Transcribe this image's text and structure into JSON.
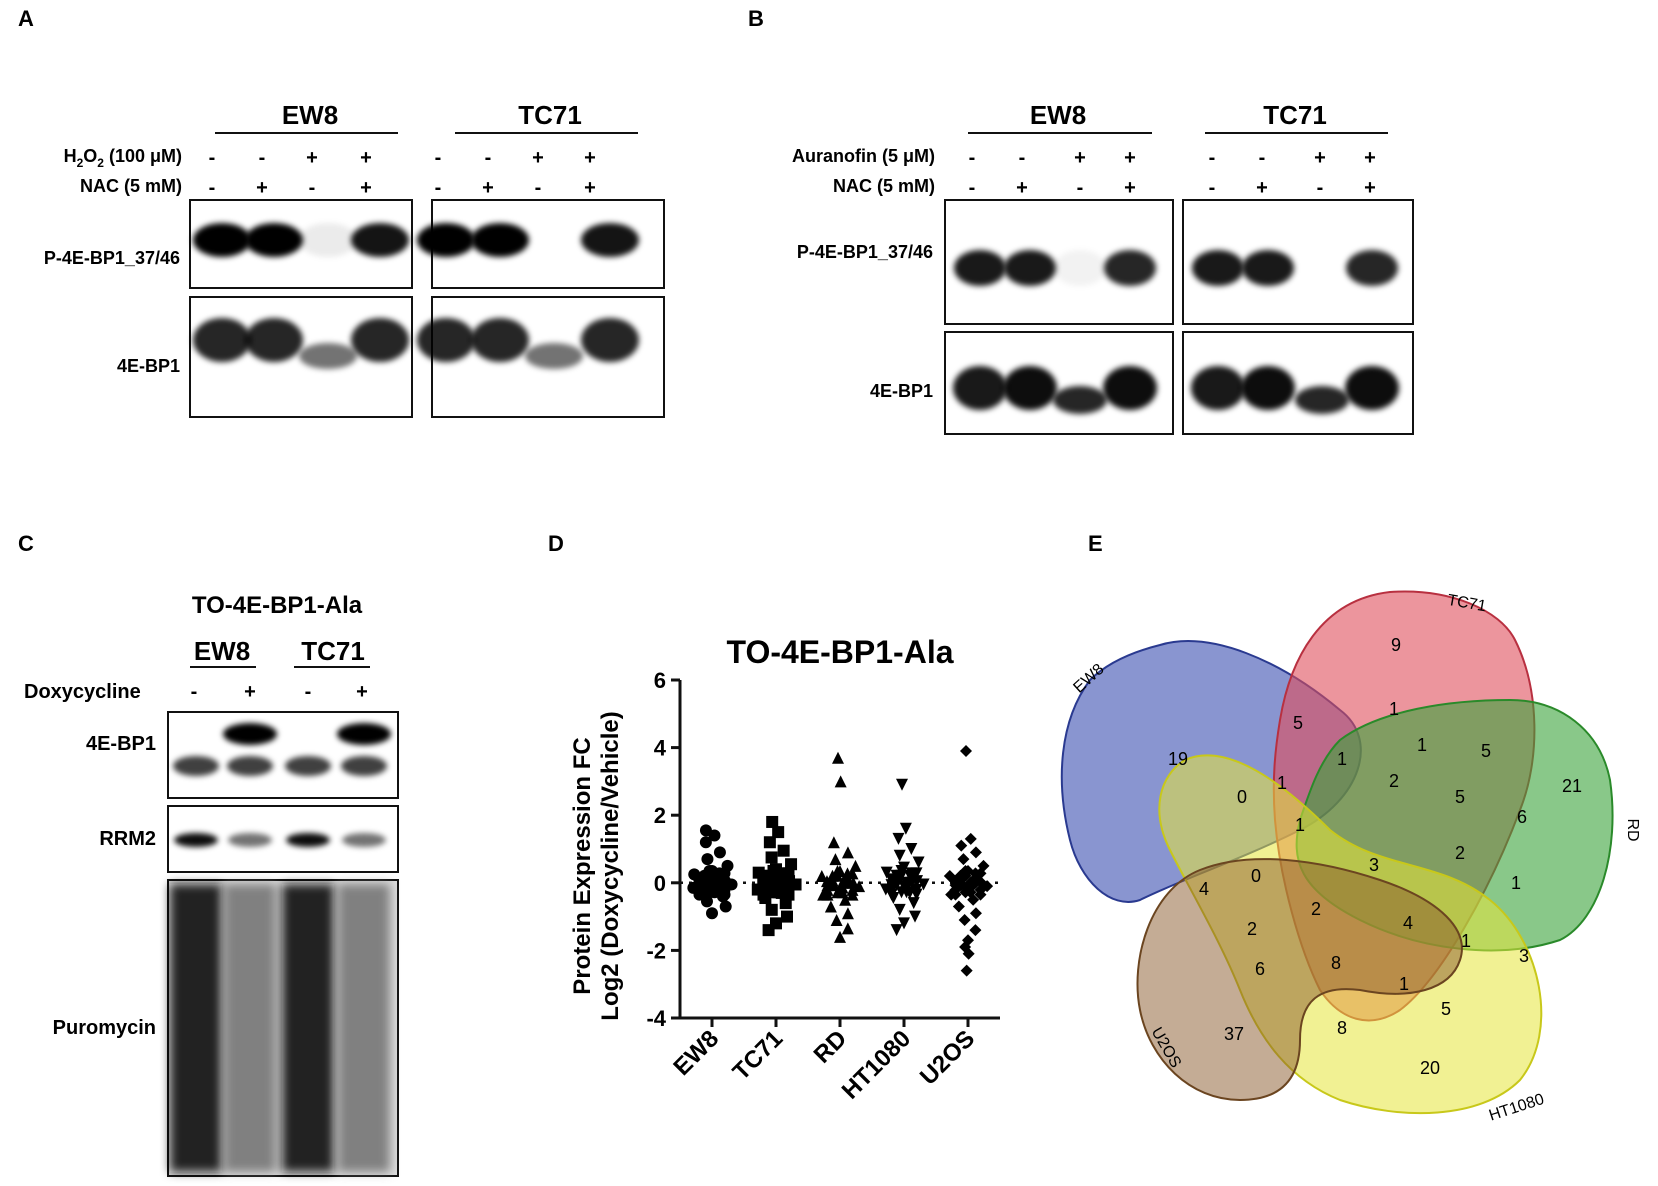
{
  "panels": {
    "A": {
      "letter": "A",
      "groups": [
        "EW8",
        "TC71"
      ],
      "treatments": [
        {
          "label": "H2O2 (100 μM)",
          "signs": [
            "-",
            "-",
            "+",
            "+"
          ]
        },
        {
          "label": "NAC (5 mM)",
          "signs": [
            "-",
            "+",
            "-",
            "+"
          ]
        }
      ],
      "blots": [
        "P-4E-BP1_37/46",
        "4E-BP1"
      ],
      "band_intensity": {
        "P-4E-BP1_37/46": [
          1.0,
          1.0,
          0.08,
          0.92
        ],
        "4E-BP1": [
          0.85,
          0.85,
          0.55,
          0.85
        ]
      }
    },
    "B": {
      "letter": "B",
      "groups": [
        "EW8",
        "TC71"
      ],
      "treatments": [
        {
          "label": "Auranofin (5 μM)",
          "signs": [
            "-",
            "-",
            "+",
            "+"
          ]
        },
        {
          "label": "NAC (5 mM)",
          "signs": [
            "-",
            "+",
            "-",
            "+"
          ]
        }
      ],
      "blots": [
        "P-4E-BP1_37/46",
        "4E-BP1"
      ],
      "band_intensity": {
        "P-4E-BP1_37/46": [
          0.9,
          0.9,
          0.05,
          0.85
        ],
        "4E-BP1": [
          0.9,
          0.95,
          0.85,
          0.95
        ]
      }
    },
    "C": {
      "letter": "C",
      "title": "TO-4E-BP1-Ala",
      "groups": [
        "EW8",
        "TC71"
      ],
      "treatments": [
        {
          "label": "Doxycycline",
          "signs": [
            "-",
            "+",
            "-",
            "+"
          ]
        }
      ],
      "blots": [
        "4E-BP1",
        "RRM2",
        "Puromycin"
      ]
    },
    "D": {
      "letter": "D",
      "title": "TO-4E-BP1-Ala",
      "ylabel_line1": "Protein Expression FC",
      "ylabel_line2": "Log2 (Doxycycline/Vehicle)"
    },
    "E": {
      "letter": "E",
      "set_labels": [
        "EW8",
        "TC71",
        "RD",
        "HT1080",
        "U2OS"
      ],
      "region_counts": [
        "19",
        "9",
        "21",
        "20",
        "37",
        "5",
        "1",
        "1",
        "5",
        "1",
        "0",
        "1",
        "2",
        "5",
        "6",
        "0",
        "1",
        "3",
        "2",
        "1",
        "4",
        "2",
        "2",
        "4",
        "1",
        "3",
        "6",
        "8",
        "1",
        "5",
        "8"
      ]
    }
  },
  "chart_data": {
    "type": "scatter",
    "title": "TO-4E-BP1-Ala",
    "xlabel": "",
    "ylabel": "Protein Expression FC Log2 (Doxycycline/Vehicle)",
    "categories": [
      "EW8",
      "TC71",
      "RD",
      "HT1080",
      "U2OS"
    ],
    "markers": [
      "circle",
      "square",
      "triangle-up",
      "triangle-down",
      "diamond"
    ],
    "ylim": [
      -4,
      6
    ],
    "yticks": [
      -4,
      -2,
      0,
      2,
      4,
      6
    ],
    "reference_line": 0,
    "series": [
      {
        "name": "EW8",
        "values": [
          1.55,
          1.4,
          1.2,
          0.9,
          0.7,
          0.5,
          0.35,
          0.25,
          0.15,
          0.1,
          0.05,
          0.0,
          -0.05,
          -0.1,
          -0.15,
          -0.2,
          -0.3,
          -0.4,
          -0.55,
          -0.7,
          -0.9
        ]
      },
      {
        "name": "TC71",
        "values": [
          1.8,
          1.5,
          1.2,
          0.95,
          0.75,
          0.55,
          0.4,
          0.3,
          0.2,
          0.1,
          0.05,
          0.0,
          -0.05,
          -0.1,
          -0.2,
          -0.3,
          -0.45,
          -0.6,
          -0.8,
          -1.0,
          -1.2,
          -1.4
        ]
      },
      {
        "name": "RD",
        "values": [
          3.7,
          3.0,
          1.2,
          0.9,
          0.7,
          0.5,
          0.35,
          0.2,
          0.1,
          0.05,
          0.0,
          -0.05,
          -0.1,
          -0.2,
          -0.35,
          -0.5,
          -0.7,
          -0.9,
          -1.1,
          -1.35,
          -1.6
        ]
      },
      {
        "name": "HT1080",
        "values": [
          2.9,
          1.6,
          1.3,
          1.0,
          0.8,
          0.6,
          0.45,
          0.3,
          0.2,
          0.1,
          0.05,
          0.0,
          -0.05,
          -0.1,
          -0.2,
          -0.3,
          -0.45,
          -0.6,
          -0.8,
          -1.0,
          -1.2,
          -1.4
        ]
      },
      {
        "name": "U2OS",
        "values": [
          3.9,
          1.3,
          1.1,
          0.9,
          0.7,
          0.5,
          0.35,
          0.2,
          0.1,
          0.05,
          0.0,
          -0.05,
          -0.1,
          -0.2,
          -0.35,
          -0.5,
          -0.7,
          -0.9,
          -1.1,
          -1.4,
          -1.7,
          -1.9,
          -2.1,
          -2.6
        ]
      }
    ]
  },
  "colors": {
    "EW8": "#3b4fb0",
    "TC71": "#e04f5b",
    "RD": "#3aa43a",
    "HT1080": "#e6e63a",
    "U2OS": "#8a5a2b"
  }
}
